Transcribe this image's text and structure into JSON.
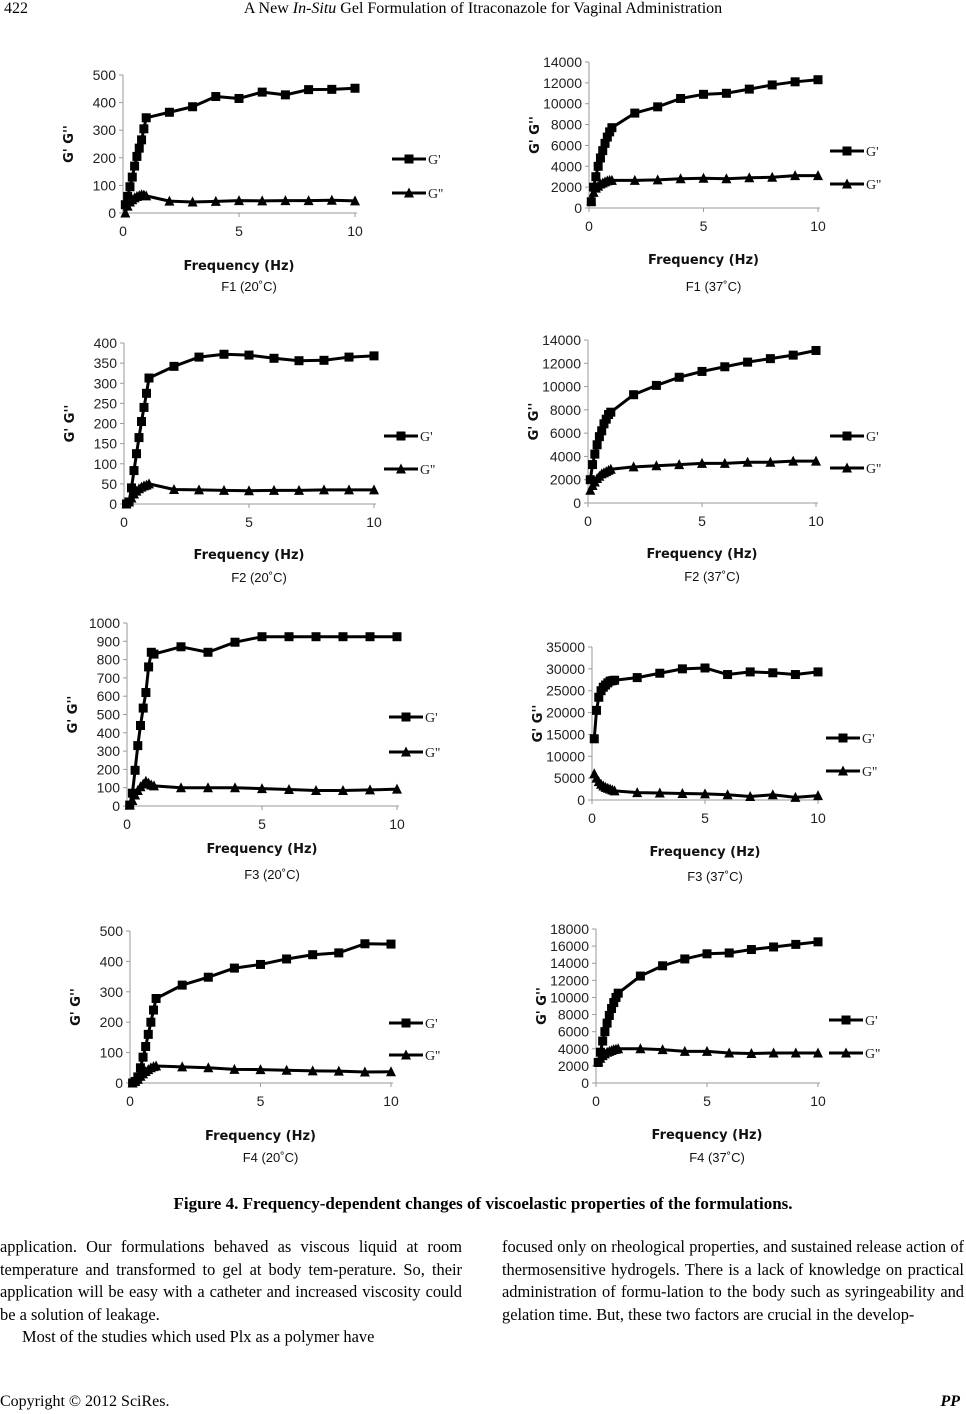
{
  "header": {
    "page_number": "422",
    "title_prefix": "A New ",
    "title_italic": "In-Situ",
    "title_suffix": " Gel Formulation of Itraconazole for Vaginal Administration"
  },
  "figure": {
    "caption": "Figure 4. Frequency-dependent changes of viscoelastic properties of the formulations."
  },
  "chart_data": [
    {
      "id": "f1-20",
      "type": "line",
      "panel_label": "F1 (20˚C)",
      "xlabel": "Frequency (Hz)",
      "ylabel": "G' G''",
      "xlim": [
        0,
        10
      ],
      "ylim": [
        0,
        500
      ],
      "xticks": [
        0,
        5,
        10
      ],
      "yticks": [
        0,
        100,
        200,
        300,
        400,
        500
      ],
      "grid": false,
      "legend": "right",
      "series": [
        {
          "name": "G'",
          "marker": "square",
          "x": [
            0.1,
            0.2,
            0.3,
            0.4,
            0.5,
            0.6,
            0.7,
            0.8,
            0.9,
            1,
            2,
            3,
            4,
            5,
            6,
            7,
            8,
            9,
            10
          ],
          "y": [
            30,
            60,
            95,
            130,
            170,
            205,
            235,
            265,
            305,
            345,
            365,
            385,
            422,
            415,
            438,
            428,
            447,
            448,
            452
          ]
        },
        {
          "name": "G''",
          "marker": "triangle",
          "x": [
            0.1,
            0.2,
            0.3,
            0.4,
            0.5,
            0.6,
            0.7,
            0.8,
            0.9,
            1,
            2,
            3,
            4,
            5,
            6,
            7,
            8,
            9,
            10
          ],
          "y": [
            0,
            25,
            40,
            48,
            55,
            60,
            63,
            66,
            65,
            62,
            43,
            40,
            42,
            45,
            44,
            45,
            45,
            46,
            44
          ]
        }
      ]
    },
    {
      "id": "f1-37",
      "type": "line",
      "panel_label": "F1 (37˚C)",
      "xlabel": "Frequency (Hz)",
      "ylabel": "G' G''",
      "xlim": [
        0,
        10
      ],
      "ylim": [
        0,
        14000
      ],
      "xticks": [
        0,
        5,
        10
      ],
      "yticks": [
        0,
        2000,
        4000,
        6000,
        8000,
        10000,
        12000,
        14000
      ],
      "grid": false,
      "legend": "right",
      "series": [
        {
          "name": "G'",
          "marker": "square",
          "x": [
            0.1,
            0.2,
            0.3,
            0.4,
            0.5,
            0.6,
            0.7,
            0.8,
            0.9,
            1,
            2,
            3,
            4,
            5,
            6,
            7,
            8,
            9,
            10
          ],
          "y": [
            600,
            2000,
            3000,
            4000,
            4800,
            5500,
            6200,
            6800,
            7300,
            7700,
            9100,
            9700,
            10500,
            10900,
            11000,
            11400,
            11800,
            12100,
            12300
          ]
        },
        {
          "name": "G''",
          "marker": "triangle",
          "x": [
            0.1,
            0.2,
            0.3,
            0.4,
            0.5,
            0.6,
            0.7,
            0.8,
            0.9,
            1,
            2,
            3,
            4,
            5,
            6,
            7,
            8,
            9,
            10
          ],
          "y": [
            700,
            1500,
            1900,
            2100,
            2300,
            2400,
            2500,
            2600,
            2650,
            2650,
            2650,
            2700,
            2800,
            2850,
            2800,
            2900,
            2950,
            3100,
            3100
          ]
        }
      ]
    },
    {
      "id": "f2-20",
      "type": "line",
      "panel_label": "F2 (20˚C)",
      "xlabel": "Frequency (Hz)",
      "ylabel": "G' G''",
      "xlim": [
        0,
        10
      ],
      "ylim": [
        0,
        400
      ],
      "xticks": [
        0,
        5,
        10
      ],
      "yticks": [
        0,
        50,
        100,
        150,
        200,
        250,
        300,
        350,
        400
      ],
      "grid": false,
      "legend": "right",
      "series": [
        {
          "name": "G'",
          "marker": "square",
          "x": [
            0.1,
            0.2,
            0.3,
            0.4,
            0.5,
            0.6,
            0.7,
            0.8,
            0.9,
            1,
            2,
            3,
            4,
            5,
            6,
            7,
            8,
            9,
            10
          ],
          "y": [
            0,
            5,
            40,
            83,
            125,
            165,
            205,
            240,
            275,
            313,
            342,
            365,
            372,
            370,
            362,
            356,
            357,
            365,
            368
          ]
        },
        {
          "name": "G''",
          "marker": "triangle",
          "x": [
            0.1,
            0.2,
            0.3,
            0.4,
            0.5,
            0.6,
            0.7,
            0.8,
            0.9,
            1,
            2,
            3,
            4,
            5,
            6,
            7,
            8,
            9,
            10
          ],
          "y": [
            0,
            5,
            15,
            25,
            32,
            38,
            42,
            45,
            47,
            50,
            36,
            35,
            34,
            33,
            34,
            34,
            35,
            35,
            35
          ]
        }
      ]
    },
    {
      "id": "f2-37",
      "type": "line",
      "panel_label": "F2 (37˚C)",
      "xlabel": "Frequency (Hz)",
      "ylabel": "G' G''",
      "xlim": [
        0,
        10
      ],
      "ylim": [
        0,
        14000
      ],
      "xticks": [
        0,
        5,
        10
      ],
      "yticks": [
        0,
        2000,
        4000,
        6000,
        8000,
        10000,
        12000,
        14000
      ],
      "grid": false,
      "legend": "right",
      "series": [
        {
          "name": "G'",
          "marker": "square",
          "x": [
            0.1,
            0.2,
            0.3,
            0.4,
            0.5,
            0.6,
            0.7,
            0.8,
            0.9,
            1,
            2,
            3,
            4,
            5,
            6,
            7,
            8,
            9,
            10
          ],
          "y": [
            2000,
            3300,
            4200,
            5000,
            5700,
            6200,
            6800,
            7200,
            7600,
            7800,
            9300,
            10100,
            10800,
            11300,
            11700,
            12100,
            12400,
            12700,
            13100
          ]
        },
        {
          "name": "G''",
          "marker": "triangle",
          "x": [
            0.1,
            0.2,
            0.3,
            0.4,
            0.5,
            0.6,
            0.7,
            0.8,
            0.9,
            1,
            2,
            3,
            4,
            5,
            6,
            7,
            8,
            9,
            10
          ],
          "y": [
            1100,
            1500,
            1800,
            2100,
            2300,
            2500,
            2600,
            2700,
            2800,
            2900,
            3100,
            3200,
            3300,
            3400,
            3400,
            3500,
            3500,
            3600,
            3600
          ]
        }
      ]
    },
    {
      "id": "f3-20",
      "type": "line",
      "panel_label": "F3 (20˚C)",
      "xlabel": "Frequency (Hz)",
      "ylabel": "G' G''",
      "xlim": [
        0,
        10
      ],
      "ylim": [
        0,
        1000
      ],
      "xticks": [
        0,
        5,
        10
      ],
      "yticks": [
        0,
        100,
        200,
        300,
        400,
        500,
        600,
        700,
        800,
        900,
        1000
      ],
      "grid": false,
      "legend": "right",
      "series": [
        {
          "name": "G'",
          "marker": "square",
          "x": [
            0.1,
            0.2,
            0.3,
            0.4,
            0.5,
            0.6,
            0.7,
            0.8,
            0.9,
            1,
            2,
            3,
            4,
            5,
            6,
            7,
            8,
            9,
            10
          ],
          "y": [
            5,
            70,
            195,
            330,
            440,
            535,
            620,
            760,
            840,
            830,
            870,
            840,
            895,
            925,
            925,
            925,
            925,
            925,
            925
          ]
        },
        {
          "name": "G''",
          "marker": "triangle",
          "x": [
            0.1,
            0.2,
            0.3,
            0.4,
            0.5,
            0.6,
            0.7,
            0.8,
            0.9,
            1,
            2,
            3,
            4,
            5,
            6,
            7,
            8,
            9,
            10
          ],
          "y": [
            5,
            30,
            60,
            85,
            105,
            120,
            135,
            125,
            115,
            110,
            100,
            100,
            100,
            95,
            90,
            85,
            85,
            88,
            92
          ]
        }
      ]
    },
    {
      "id": "f3-37",
      "type": "line",
      "panel_label": "F3 (37˚C)",
      "xlabel": "Frequency (Hz)",
      "ylabel": "G' G''",
      "xlim": [
        0,
        10
      ],
      "ylim": [
        0,
        35000
      ],
      "xticks": [
        0,
        5,
        10
      ],
      "yticks": [
        0,
        5000,
        10000,
        15000,
        20000,
        25000,
        30000,
        35000
      ],
      "grid": false,
      "legend": "right",
      "series": [
        {
          "name": "G'",
          "marker": "square",
          "x": [
            0.1,
            0.2,
            0.3,
            0.4,
            0.5,
            0.6,
            0.7,
            0.8,
            0.9,
            1,
            2,
            3,
            4,
            5,
            6,
            7,
            8,
            9,
            10
          ],
          "y": [
            14000,
            20500,
            23500,
            25000,
            25800,
            26300,
            26800,
            27200,
            27300,
            27400,
            28000,
            29000,
            30000,
            30200,
            28700,
            29300,
            29100,
            28700,
            29300
          ]
        },
        {
          "name": "G''",
          "marker": "triangle",
          "x": [
            0.1,
            0.2,
            0.3,
            0.4,
            0.5,
            0.6,
            0.7,
            0.8,
            0.9,
            1,
            2,
            3,
            4,
            5,
            6,
            7,
            8,
            9,
            10
          ],
          "y": [
            6000,
            5000,
            4200,
            3600,
            3200,
            2900,
            2700,
            2500,
            2300,
            2100,
            1700,
            1600,
            1500,
            1400,
            1200,
            800,
            1200,
            600,
            1000
          ]
        }
      ]
    },
    {
      "id": "f4-20",
      "type": "line",
      "panel_label": "F4 (20˚C)",
      "xlabel": "Frequency (Hz)",
      "ylabel": "G' G''",
      "xlim": [
        0,
        10
      ],
      "ylim": [
        0,
        500
      ],
      "xticks": [
        0,
        5,
        10
      ],
      "yticks": [
        0,
        100,
        200,
        300,
        400,
        500
      ],
      "grid": false,
      "legend": "right",
      "series": [
        {
          "name": "G'",
          "marker": "square",
          "x": [
            0.1,
            0.2,
            0.3,
            0.4,
            0.5,
            0.6,
            0.7,
            0.8,
            0.9,
            1,
            2,
            3,
            4,
            5,
            6,
            7,
            8,
            9,
            10
          ],
          "y": [
            0,
            5,
            20,
            50,
            85,
            120,
            160,
            200,
            240,
            278,
            322,
            348,
            378,
            390,
            408,
            422,
            428,
            458,
            457
          ]
        },
        {
          "name": "G''",
          "marker": "triangle",
          "x": [
            0.1,
            0.2,
            0.3,
            0.4,
            0.5,
            0.6,
            0.7,
            0.8,
            0.9,
            1,
            2,
            3,
            4,
            5,
            6,
            7,
            8,
            9,
            10
          ],
          "y": [
            0,
            5,
            12,
            22,
            30,
            38,
            44,
            50,
            54,
            56,
            53,
            50,
            45,
            44,
            42,
            40,
            39,
            36,
            37
          ]
        }
      ]
    },
    {
      "id": "f4-37",
      "type": "line",
      "panel_label": "F4 (37˚C)",
      "xlabel": "Frequency (Hz)",
      "ylabel": "G' G''",
      "xlim": [
        0,
        10
      ],
      "ylim": [
        0,
        18000
      ],
      "xticks": [
        0,
        5,
        10
      ],
      "yticks": [
        0,
        2000,
        4000,
        6000,
        8000,
        10000,
        12000,
        14000,
        16000,
        18000
      ],
      "grid": false,
      "legend": "right",
      "series": [
        {
          "name": "G'",
          "marker": "square",
          "x": [
            0.1,
            0.2,
            0.3,
            0.4,
            0.5,
            0.6,
            0.7,
            0.8,
            0.9,
            1,
            2,
            3,
            4,
            5,
            6,
            7,
            8,
            9,
            10
          ],
          "y": [
            2400,
            3600,
            4900,
            6000,
            7000,
            7900,
            8700,
            9400,
            10000,
            10500,
            12500,
            13700,
            14500,
            15100,
            15200,
            15600,
            15900,
            16200,
            16500
          ]
        },
        {
          "name": "G''",
          "marker": "triangle",
          "x": [
            0.1,
            0.2,
            0.3,
            0.4,
            0.5,
            0.6,
            0.7,
            0.8,
            0.9,
            1,
            2,
            3,
            4,
            5,
            6,
            7,
            8,
            9,
            10
          ],
          "y": [
            2500,
            2900,
            3200,
            3400,
            3600,
            3700,
            3800,
            3900,
            3950,
            4000,
            4000,
            3900,
            3700,
            3700,
            3500,
            3450,
            3500,
            3500,
            3500
          ]
        }
      ]
    }
  ],
  "body": {
    "left_col_p1": "application. Our formulations behaved as viscous liquid at room temperature and transformed to gel at body tem-perature. So, their application will be easy with a catheter and increased viscosity could be a solution of leakage.",
    "left_col_p2": "Most of the studies which used Plx as a polymer have",
    "right_col_p1": "focused only on rheological properties, and sustained release action of thermosensitive hydrogels. There is a lack of knowledge on practical administration of formu-lation to the body such as syringeability and gelation time. But, these two factors are crucial in the develop-"
  },
  "footer": {
    "copyright": "Copyright © 2012 SciRes.",
    "journal_abbrev": "PP"
  }
}
